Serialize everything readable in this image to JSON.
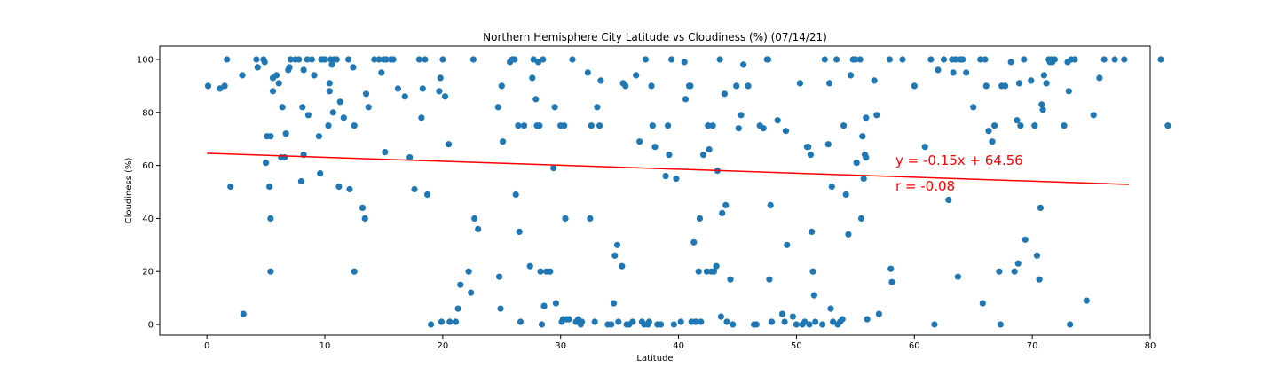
{
  "chart_data": {
    "type": "scatter",
    "title": "Northern Hemisphere City Latitude vs Cloudiness (%) (07/14/21)",
    "xlabel": "Latitude",
    "ylabel": "Cloudiness (%)",
    "xlim": [
      -4,
      80
    ],
    "ylim": [
      -4,
      105
    ],
    "xticks": [
      0,
      10,
      20,
      30,
      40,
      50,
      60,
      70,
      80
    ],
    "yticks": [
      0,
      20,
      40,
      60,
      80,
      100
    ],
    "grid": false,
    "point_color": "#1f77b4",
    "regression": {
      "slope": -0.15,
      "intercept": 64.56,
      "x_range": [
        0,
        78.2
      ],
      "color": "#ff0000",
      "equation_label": "y = -0.15x + 64.56",
      "r_label": "r = -0.08"
    },
    "points": [
      [
        0.1,
        90
      ],
      [
        1.1,
        89
      ],
      [
        1.5,
        90
      ],
      [
        1.7,
        100
      ],
      [
        2.0,
        52
      ],
      [
        3.0,
        94
      ],
      [
        3.1,
        4
      ],
      [
        4.2,
        100
      ],
      [
        4.3,
        97
      ],
      [
        4.8,
        100
      ],
      [
        4.9,
        99
      ],
      [
        5.0,
        61
      ],
      [
        5.1,
        71
      ],
      [
        5.3,
        52
      ],
      [
        5.4,
        71
      ],
      [
        5.4,
        40
      ],
      [
        5.4,
        20
      ],
      [
        5.6,
        93
      ],
      [
        5.6,
        88
      ],
      [
        5.9,
        94
      ],
      [
        6.1,
        91
      ],
      [
        6.3,
        63
      ],
      [
        6.4,
        82
      ],
      [
        6.6,
        63
      ],
      [
        6.7,
        72
      ],
      [
        6.9,
        96
      ],
      [
        7.0,
        97
      ],
      [
        7.1,
        100
      ],
      [
        7.5,
        100
      ],
      [
        7.8,
        100
      ],
      [
        8.0,
        54
      ],
      [
        8.1,
        82
      ],
      [
        8.2,
        64
      ],
      [
        8.2,
        96
      ],
      [
        8.5,
        100
      ],
      [
        8.6,
        79
      ],
      [
        8.9,
        100
      ],
      [
        9.1,
        94
      ],
      [
        9.5,
        71
      ],
      [
        9.6,
        57
      ],
      [
        9.7,
        100
      ],
      [
        9.9,
        100
      ],
      [
        10.0,
        100
      ],
      [
        10.3,
        75
      ],
      [
        10.4,
        88
      ],
      [
        10.4,
        91
      ],
      [
        10.5,
        100
      ],
      [
        10.6,
        98
      ],
      [
        10.7,
        80
      ],
      [
        10.8,
        100
      ],
      [
        11.0,
        100
      ],
      [
        11.2,
        52
      ],
      [
        11.3,
        84
      ],
      [
        11.6,
        78
      ],
      [
        12.0,
        100
      ],
      [
        12.1,
        51
      ],
      [
        12.4,
        97
      ],
      [
        12.5,
        20
      ],
      [
        12.5,
        75
      ],
      [
        13.2,
        44
      ],
      [
        13.4,
        40
      ],
      [
        13.5,
        87
      ],
      [
        13.7,
        82
      ],
      [
        14.2,
        100
      ],
      [
        14.6,
        100
      ],
      [
        14.8,
        95
      ],
      [
        15.0,
        100
      ],
      [
        15.1,
        65
      ],
      [
        15.2,
        100
      ],
      [
        15.6,
        100
      ],
      [
        15.8,
        100
      ],
      [
        16.2,
        89
      ],
      [
        16.8,
        86
      ],
      [
        17.2,
        63
      ],
      [
        17.6,
        51
      ],
      [
        18.0,
        100
      ],
      [
        18.2,
        78
      ],
      [
        18.3,
        89
      ],
      [
        18.5,
        100
      ],
      [
        18.7,
        49
      ],
      [
        19.0,
        0
      ],
      [
        19.7,
        88
      ],
      [
        19.8,
        93
      ],
      [
        19.9,
        1
      ],
      [
        20.0,
        100
      ],
      [
        20.2,
        86
      ],
      [
        20.5,
        68
      ],
      [
        20.6,
        1
      ],
      [
        21.1,
        1
      ],
      [
        21.3,
        6
      ],
      [
        21.5,
        15
      ],
      [
        22.2,
        20
      ],
      [
        22.4,
        12
      ],
      [
        22.6,
        100
      ],
      [
        22.7,
        40
      ],
      [
        23.0,
        36
      ],
      [
        24.7,
        82
      ],
      [
        24.8,
        18
      ],
      [
        24.9,
        6
      ],
      [
        25.0,
        90
      ],
      [
        25.1,
        69
      ],
      [
        25.7,
        99
      ],
      [
        25.9,
        100
      ],
      [
        26.1,
        100
      ],
      [
        26.2,
        49
      ],
      [
        26.4,
        75
      ],
      [
        26.5,
        35
      ],
      [
        26.6,
        1
      ],
      [
        26.9,
        75
      ],
      [
        27.4,
        22
      ],
      [
        27.6,
        93
      ],
      [
        27.7,
        100
      ],
      [
        27.9,
        85
      ],
      [
        28.0,
        75
      ],
      [
        28.1,
        99
      ],
      [
        28.2,
        75
      ],
      [
        28.3,
        20
      ],
      [
        28.4,
        0
      ],
      [
        28.5,
        100
      ],
      [
        28.6,
        7
      ],
      [
        28.8,
        20
      ],
      [
        29.1,
        20
      ],
      [
        29.4,
        59
      ],
      [
        29.5,
        82
      ],
      [
        29.6,
        8
      ],
      [
        30.0,
        75
      ],
      [
        30.1,
        1
      ],
      [
        30.2,
        2
      ],
      [
        30.3,
        75
      ],
      [
        30.4,
        40
      ],
      [
        30.5,
        2
      ],
      [
        30.7,
        2
      ],
      [
        31.0,
        100
      ],
      [
        31.3,
        1
      ],
      [
        31.5,
        2
      ],
      [
        31.7,
        0
      ],
      [
        31.8,
        1
      ],
      [
        32.3,
        95
      ],
      [
        32.5,
        40
      ],
      [
        32.6,
        75
      ],
      [
        32.9,
        1
      ],
      [
        33.1,
        82
      ],
      [
        33.3,
        75
      ],
      [
        33.4,
        92
      ],
      [
        34.0,
        0
      ],
      [
        34.3,
        0
      ],
      [
        34.5,
        8
      ],
      [
        34.6,
        26
      ],
      [
        34.8,
        30
      ],
      [
        34.9,
        1
      ],
      [
        35.2,
        22
      ],
      [
        35.3,
        91
      ],
      [
        35.5,
        90
      ],
      [
        35.6,
        0
      ],
      [
        35.8,
        0
      ],
      [
        36.1,
        1
      ],
      [
        36.4,
        94
      ],
      [
        36.7,
        69
      ],
      [
        36.9,
        1
      ],
      [
        37.1,
        0
      ],
      [
        37.2,
        100
      ],
      [
        37.4,
        0
      ],
      [
        37.5,
        1
      ],
      [
        37.7,
        90
      ],
      [
        37.8,
        75
      ],
      [
        38.0,
        67
      ],
      [
        38.2,
        0
      ],
      [
        38.5,
        0
      ],
      [
        38.9,
        56
      ],
      [
        39.1,
        75
      ],
      [
        39.2,
        64
      ],
      [
        39.4,
        100
      ],
      [
        39.6,
        0
      ],
      [
        39.8,
        55
      ],
      [
        40.2,
        1
      ],
      [
        40.5,
        99
      ],
      [
        40.6,
        85
      ],
      [
        40.9,
        90
      ],
      [
        41.0,
        90
      ],
      [
        41.1,
        1
      ],
      [
        41.3,
        31
      ],
      [
        41.4,
        1
      ],
      [
        41.5,
        1
      ],
      [
        41.7,
        20
      ],
      [
        41.8,
        40
      ],
      [
        41.9,
        1
      ],
      [
        42.1,
        64
      ],
      [
        42.4,
        20
      ],
      [
        42.5,
        75
      ],
      [
        42.6,
        66
      ],
      [
        42.8,
        20
      ],
      [
        42.9,
        75
      ],
      [
        43.0,
        20
      ],
      [
        43.2,
        22
      ],
      [
        43.3,
        58
      ],
      [
        43.5,
        100
      ],
      [
        43.6,
        3
      ],
      [
        43.7,
        42
      ],
      [
        43.9,
        87
      ],
      [
        44.0,
        45
      ],
      [
        44.1,
        1
      ],
      [
        44.4,
        17
      ],
      [
        44.6,
        0
      ],
      [
        44.9,
        90
      ],
      [
        45.1,
        74
      ],
      [
        45.3,
        79
      ],
      [
        45.5,
        98
      ],
      [
        45.9,
        90
      ],
      [
        46.4,
        0
      ],
      [
        46.6,
        0
      ],
      [
        46.9,
        75
      ],
      [
        47.2,
        74
      ],
      [
        47.5,
        100
      ],
      [
        47.6,
        100
      ],
      [
        47.7,
        17
      ],
      [
        47.8,
        45
      ],
      [
        47.9,
        1
      ],
      [
        48.4,
        77
      ],
      [
        48.8,
        4
      ],
      [
        49.0,
        1
      ],
      [
        49.1,
        73
      ],
      [
        49.2,
        30
      ],
      [
        49.7,
        3
      ],
      [
        50.0,
        0
      ],
      [
        50.3,
        91
      ],
      [
        50.5,
        0
      ],
      [
        50.7,
        1
      ],
      [
        50.9,
        67
      ],
      [
        51.0,
        67
      ],
      [
        51.1,
        0
      ],
      [
        51.2,
        64
      ],
      [
        51.3,
        35
      ],
      [
        51.4,
        20
      ],
      [
        51.5,
        11
      ],
      [
        51.6,
        1
      ],
      [
        52.2,
        0
      ],
      [
        52.4,
        100
      ],
      [
        52.7,
        68
      ],
      [
        52.8,
        91
      ],
      [
        52.9,
        6
      ],
      [
        53.0,
        52
      ],
      [
        53.1,
        1
      ],
      [
        53.4,
        100
      ],
      [
        53.5,
        0
      ],
      [
        53.7,
        1
      ],
      [
        53.9,
        2
      ],
      [
        54.0,
        75
      ],
      [
        54.2,
        49
      ],
      [
        54.4,
        34
      ],
      [
        54.6,
        94
      ],
      [
        54.8,
        100
      ],
      [
        55.0,
        100
      ],
      [
        55.1,
        61
      ],
      [
        55.4,
        100
      ],
      [
        55.5,
        40
      ],
      [
        55.6,
        71
      ],
      [
        55.7,
        55
      ],
      [
        55.8,
        64
      ],
      [
        55.9,
        63
      ],
      [
        55.9,
        78
      ],
      [
        56.0,
        2
      ],
      [
        56.6,
        92
      ],
      [
        56.8,
        79
      ],
      [
        57.0,
        4
      ],
      [
        57.9,
        100
      ],
      [
        58.0,
        21
      ],
      [
        58.1,
        16
      ],
      [
        59.0,
        100
      ],
      [
        60.0,
        90
      ],
      [
        60.9,
        67
      ],
      [
        61.4,
        100
      ],
      [
        61.7,
        0
      ],
      [
        62.0,
        96
      ],
      [
        62.5,
        100
      ],
      [
        62.9,
        47
      ],
      [
        63.2,
        100
      ],
      [
        63.3,
        95
      ],
      [
        63.5,
        100
      ],
      [
        63.7,
        18
      ],
      [
        63.9,
        100
      ],
      [
        64.1,
        100
      ],
      [
        64.4,
        95
      ],
      [
        65.0,
        82
      ],
      [
        65.6,
        100
      ],
      [
        65.8,
        8
      ],
      [
        66.0,
        100
      ],
      [
        66.1,
        90
      ],
      [
        66.3,
        73
      ],
      [
        66.6,
        69
      ],
      [
        66.8,
        75
      ],
      [
        67.2,
        20
      ],
      [
        67.3,
        0
      ],
      [
        67.4,
        90
      ],
      [
        67.7,
        90
      ],
      [
        68.2,
        99
      ],
      [
        68.5,
        20
      ],
      [
        68.7,
        77
      ],
      [
        68.8,
        23
      ],
      [
        68.9,
        91
      ],
      [
        69.0,
        75
      ],
      [
        69.3,
        100
      ],
      [
        69.4,
        32
      ],
      [
        69.9,
        92
      ],
      [
        70.2,
        75
      ],
      [
        70.4,
        26
      ],
      [
        70.6,
        17
      ],
      [
        70.7,
        44
      ],
      [
        70.8,
        83
      ],
      [
        70.9,
        81
      ],
      [
        71.0,
        94
      ],
      [
        71.2,
        91
      ],
      [
        71.4,
        100
      ],
      [
        71.5,
        99
      ],
      [
        71.6,
        100
      ],
      [
        71.7,
        99
      ],
      [
        71.9,
        100
      ],
      [
        72.7,
        75
      ],
      [
        73.0,
        99
      ],
      [
        73.1,
        88
      ],
      [
        73.2,
        0
      ],
      [
        73.3,
        100
      ],
      [
        73.6,
        100
      ],
      [
        74.6,
        9
      ],
      [
        75.2,
        79
      ],
      [
        75.7,
        93
      ],
      [
        76.1,
        100
      ],
      [
        77.0,
        100
      ],
      [
        77.8,
        100
      ],
      [
        80.9,
        100
      ],
      [
        81.5,
        75
      ]
    ]
  }
}
